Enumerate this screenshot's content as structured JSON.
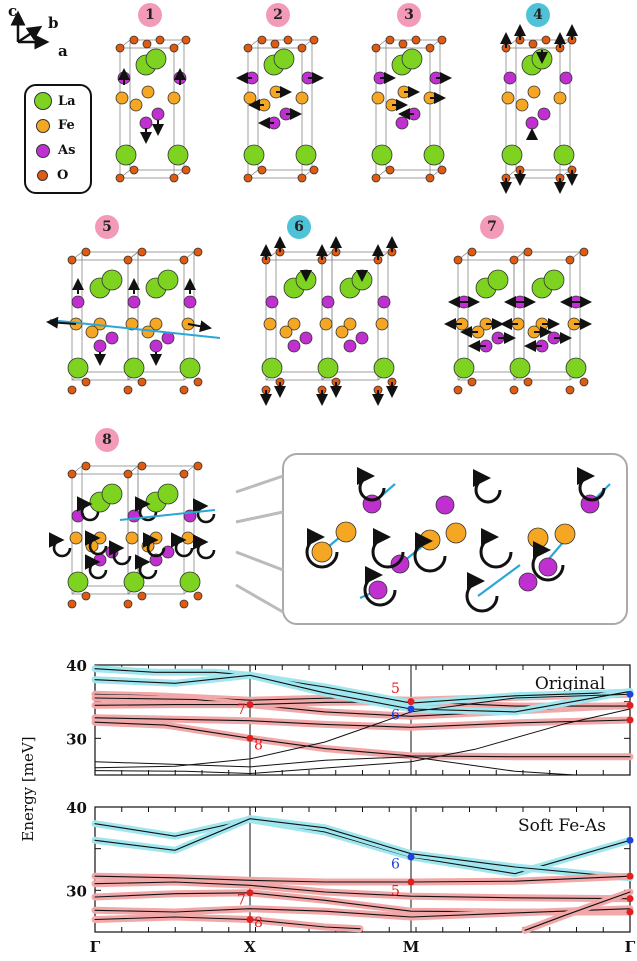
{
  "axes_indicator": {
    "c": "c",
    "b": "b",
    "a": "a"
  },
  "legend": [
    {
      "label": "La",
      "color": "#7ed321"
    },
    {
      "label": "Fe",
      "color": "#f5a623"
    },
    {
      "label": "As",
      "color": "#c030d0"
    },
    {
      "label": "O",
      "color": "#e05a10"
    }
  ],
  "panels": [
    {
      "id": "1",
      "color": "#f29ab8"
    },
    {
      "id": "2",
      "color": "#f29ab8"
    },
    {
      "id": "3",
      "color": "#f29ab8"
    },
    {
      "id": "4",
      "color": "#4ec3d8"
    },
    {
      "id": "5",
      "color": "#f29ab8"
    },
    {
      "id": "6",
      "color": "#4ec3d8"
    },
    {
      "id": "7",
      "color": "#f29ab8"
    },
    {
      "id": "8",
      "color": "#f29ab8"
    }
  ],
  "chart_data": [
    {
      "type": "line",
      "title": "Original",
      "ylabel": "Energy [meV]",
      "ylim": [
        25,
        40
      ],
      "yticks": [
        30,
        35,
        40
      ],
      "ytick_labels": [
        "30",
        "",
        "40"
      ],
      "xticks": [
        "Γ",
        "X",
        "M",
        "Γ"
      ],
      "mode_labels": [
        {
          "text": "7",
          "color": "#e02020"
        },
        {
          "text": "8",
          "color": "#e02020"
        },
        {
          "text": "5",
          "color": "#e02020"
        },
        {
          "text": "6",
          "color": "#2040e0"
        }
      ]
    },
    {
      "type": "line",
      "title": "Soft Fe-As",
      "ylabel": "",
      "ylim": [
        25,
        40
      ],
      "yticks": [
        30,
        35,
        40
      ],
      "ytick_labels": [
        "30",
        "",
        "40"
      ],
      "xticks": [
        "Γ",
        "X",
        "M",
        "Γ"
      ],
      "mode_labels": [
        {
          "text": "6",
          "color": "#2040e0"
        },
        {
          "text": "5",
          "color": "#e02020"
        },
        {
          "text": "7",
          "color": "#e02020"
        },
        {
          "text": "8",
          "color": "#e02020"
        }
      ]
    }
  ],
  "shared_ylabel": "Energy [meV]",
  "colors": {
    "cyan_band": "#9fe6ef",
    "red_band": "#f2a8a8",
    "line": "#111111"
  }
}
